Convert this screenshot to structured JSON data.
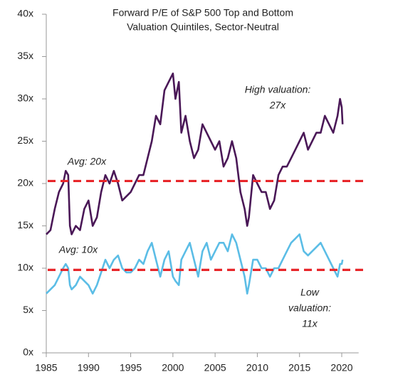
{
  "chart_data": {
    "type": "line",
    "title": [
      "Forward P/E of S&P 500 Top and Bottom",
      "Valuation Quintiles, Sector-Neutral"
    ],
    "x": [
      1985,
      1985.5,
      1986,
      1986.5,
      1987,
      1987.3,
      1987.6,
      1987.8,
      1988,
      1988.5,
      1989,
      1989.5,
      1990,
      1990.5,
      1991,
      1991.5,
      1992,
      1992.5,
      1993,
      1993.5,
      1994,
      1994.5,
      1995,
      1995.5,
      1996,
      1996.5,
      1997,
      1997.5,
      1998,
      1998.5,
      1999,
      1999.5,
      2000,
      2000.3,
      2000.7,
      2001,
      2001.5,
      2002,
      2002.5,
      2003,
      2003.5,
      2004,
      2004.5,
      2005,
      2005.5,
      2006,
      2006.5,
      2007,
      2007.5,
      2008,
      2008.5,
      2008.8,
      2009,
      2009.5,
      2010,
      2010.5,
      2011,
      2011.5,
      2012,
      2012.5,
      2013,
      2013.5,
      2014,
      2014.5,
      2015,
      2015.5,
      2016,
      2016.5,
      2017,
      2017.5,
      2018,
      2018.5,
      2019,
      2019.5,
      2019.8,
      2020,
      2020.1
    ],
    "series": [
      {
        "color": "#4a1857",
        "values": [
          14,
          14.5,
          17,
          19,
          20,
          21.5,
          21,
          15,
          14,
          15,
          14.5,
          17,
          18,
          15,
          16,
          19,
          21,
          20,
          21.5,
          20,
          18,
          18.5,
          19,
          20,
          21,
          21,
          23,
          25,
          28,
          27,
          31,
          32,
          33,
          30,
          32,
          26,
          28,
          25,
          23,
          24,
          27,
          26,
          25,
          24,
          25,
          22,
          23,
          25,
          23,
          19,
          17,
          15,
          16,
          21,
          20,
          19,
          19,
          17,
          18,
          21,
          22,
          22,
          23,
          24,
          25,
          26,
          24,
          25,
          26,
          26,
          28,
          27,
          26,
          28,
          30,
          29,
          27
        ]
      },
      {
        "color": "#5bbde6",
        "values": [
          7,
          7.5,
          8,
          9,
          10,
          10.5,
          10,
          8,
          7.5,
          8,
          9,
          8.5,
          8,
          7,
          8,
          9.5,
          11,
          10,
          11,
          11.5,
          10,
          9.5,
          9.5,
          10,
          11,
          10.5,
          12,
          13,
          11,
          9,
          11,
          12,
          9,
          8.5,
          8,
          11,
          12,
          13,
          11,
          9,
          12,
          13,
          11,
          12,
          13,
          13,
          12,
          14,
          13,
          11,
          9,
          7,
          8,
          11,
          11,
          10,
          10,
          9,
          10,
          10,
          11,
          12,
          13,
          13.5,
          14,
          12,
          11.5,
          12,
          12.5,
          13,
          12,
          11,
          10,
          9,
          10.5,
          10.5,
          11
        ]
      }
    ],
    "hlines": [
      {
        "value": 20.3,
        "color": "#e8262a"
      },
      {
        "value": 9.8,
        "color": "#e8262a"
      }
    ],
    "annotations": [
      [
        "Avg: 20x"
      ],
      [
        "Avg: 10x"
      ],
      [
        "High valuation:",
        "27x"
      ],
      [
        "Low",
        "valuation:",
        "11x"
      ]
    ],
    "xlim": [
      1985,
      2022
    ],
    "xticks": [
      1985,
      1990,
      1995,
      2000,
      2005,
      2010,
      2015,
      2020
    ],
    "ylim": [
      0,
      40
    ],
    "yticks": [
      {
        "value": 0,
        "label": "0x"
      },
      {
        "value": 5,
        "label": "5x"
      },
      {
        "value": 10,
        "label": "10x"
      },
      {
        "value": 15,
        "label": "15x"
      },
      {
        "value": 20,
        "label": "20x"
      },
      {
        "value": 25,
        "label": "25x"
      },
      {
        "value": 30,
        "label": "30x"
      },
      {
        "value": 35,
        "label": "35x"
      },
      {
        "value": 40,
        "label": "40x"
      }
    ]
  }
}
